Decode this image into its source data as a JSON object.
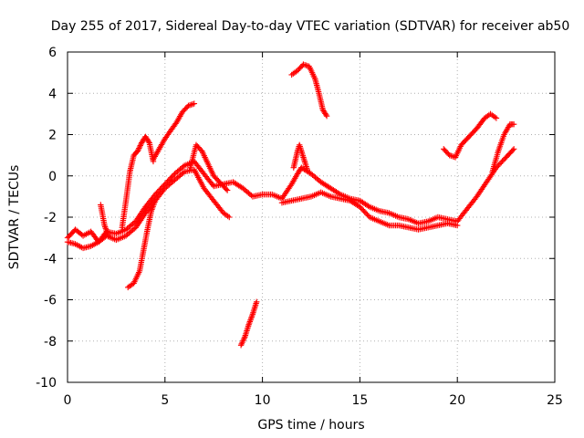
{
  "chart_data": {
    "type": "scatter",
    "title": "Day 255 of 2017, Sidereal Day-to-day VTEC variation (SDTVAR) for receiver ab50",
    "xlabel": "GPS time / hours",
    "ylabel": "SDTVAR / TECUs",
    "xlim": [
      0,
      25
    ],
    "ylim": [
      -10,
      6
    ],
    "xticks": [
      0,
      5,
      10,
      15,
      20,
      25
    ],
    "yticks": [
      -10,
      -8,
      -6,
      -4,
      -2,
      0,
      2,
      4,
      6
    ],
    "grid": true,
    "marker": "+",
    "color": "#ff0000",
    "series": [
      {
        "name": "track-main",
        "points": [
          [
            0,
            -3.0
          ],
          [
            0.4,
            -2.6
          ],
          [
            0.8,
            -2.9
          ],
          [
            1.2,
            -2.7
          ],
          [
            1.6,
            -3.2
          ],
          [
            2.0,
            -2.7
          ],
          [
            2.5,
            -2.8
          ],
          [
            3.0,
            -2.6
          ],
          [
            3.5,
            -2.2
          ],
          [
            4.0,
            -1.5
          ],
          [
            4.5,
            -0.9
          ],
          [
            5.0,
            -0.4
          ],
          [
            5.5,
            0.1
          ],
          [
            6.0,
            0.5
          ],
          [
            6.5,
            0.7
          ],
          [
            7.0,
            0.1
          ],
          [
            7.5,
            -0.5
          ],
          [
            8.0,
            -0.4
          ],
          [
            8.5,
            -0.3
          ],
          [
            9.0,
            -0.6
          ],
          [
            9.5,
            -1.0
          ],
          [
            10.0,
            -0.9
          ],
          [
            10.5,
            -0.9
          ],
          [
            11.0,
            -1.1
          ],
          [
            11.5,
            -0.4
          ],
          [
            11.8,
            0.1
          ],
          [
            12.0,
            0.4
          ],
          [
            12.5,
            0.1
          ],
          [
            13.0,
            -0.3
          ],
          [
            13.5,
            -0.6
          ],
          [
            14.0,
            -0.9
          ],
          [
            14.5,
            -1.1
          ],
          [
            15.0,
            -1.2
          ],
          [
            15.5,
            -1.5
          ],
          [
            16.0,
            -1.7
          ],
          [
            16.5,
            -1.8
          ],
          [
            17.0,
            -2.0
          ],
          [
            17.5,
            -2.1
          ],
          [
            18.0,
            -2.3
          ],
          [
            18.5,
            -2.2
          ],
          [
            19.0,
            -2.0
          ],
          [
            19.5,
            -2.1
          ],
          [
            20.0,
            -2.2
          ],
          [
            20.5,
            -1.6
          ],
          [
            21.0,
            -1.0
          ],
          [
            21.5,
            -0.3
          ],
          [
            22.0,
            0.4
          ],
          [
            22.5,
            0.9
          ],
          [
            22.9,
            1.3
          ]
        ]
      },
      {
        "name": "track-lower",
        "points": [
          [
            0,
            -3.2
          ],
          [
            0.4,
            -3.3
          ],
          [
            0.8,
            -3.5
          ],
          [
            1.2,
            -3.4
          ],
          [
            1.6,
            -3.2
          ],
          [
            2.0,
            -2.9
          ],
          [
            2.5,
            -3.1
          ],
          [
            3.0,
            -2.9
          ],
          [
            3.5,
            -2.5
          ],
          [
            4.0,
            -1.8
          ],
          [
            4.5,
            -1.2
          ],
          [
            5.0,
            -0.6
          ],
          [
            5.5,
            -0.2
          ],
          [
            6.0,
            0.2
          ],
          [
            6.5,
            0.3
          ],
          [
            7.0,
            -0.6
          ],
          [
            7.5,
            -1.2
          ],
          [
            8.0,
            -1.8
          ],
          [
            8.3,
            -2.0
          ]
        ]
      },
      {
        "name": "track-arc-a",
        "points": [
          [
            6.3,
            0.4
          ],
          [
            6.6,
            1.5
          ],
          [
            6.9,
            1.2
          ],
          [
            7.2,
            0.6
          ],
          [
            7.5,
            0.0
          ],
          [
            7.8,
            -0.3
          ],
          [
            8.2,
            -0.7
          ]
        ]
      },
      {
        "name": "track-mid",
        "points": [
          [
            11.0,
            -1.3
          ],
          [
            11.5,
            -1.2
          ],
          [
            12.0,
            -1.1
          ],
          [
            12.5,
            -1.0
          ],
          [
            13.0,
            -0.8
          ],
          [
            13.5,
            -1.0
          ],
          [
            14.0,
            -1.1
          ],
          [
            14.5,
            -1.2
          ],
          [
            15.0,
            -1.5
          ],
          [
            15.5,
            -2.0
          ],
          [
            16.0,
            -2.2
          ],
          [
            16.5,
            -2.4
          ],
          [
            17.0,
            -2.4
          ],
          [
            17.5,
            -2.5
          ],
          [
            18.0,
            -2.6
          ],
          [
            18.5,
            -2.5
          ],
          [
            19.0,
            -2.4
          ],
          [
            19.5,
            -2.3
          ],
          [
            20.0,
            -2.4
          ]
        ]
      },
      {
        "name": "rise-a",
        "points": [
          [
            3.1,
            -5.4
          ],
          [
            3.4,
            -5.2
          ],
          [
            3.7,
            -4.6
          ],
          [
            3.9,
            -3.6
          ],
          [
            4.1,
            -2.6
          ],
          [
            4.3,
            -1.7
          ],
          [
            4.5,
            -1.2
          ]
        ]
      },
      {
        "name": "rise-b",
        "points": [
          [
            2.8,
            -2.5
          ],
          [
            3.0,
            -1.2
          ],
          [
            3.2,
            0.2
          ],
          [
            3.4,
            1.0
          ],
          [
            3.6,
            1.2
          ],
          [
            3.8,
            1.6
          ],
          [
            4.0,
            1.9
          ],
          [
            4.2,
            1.6
          ],
          [
            4.4,
            0.7
          ]
        ]
      },
      {
        "name": "rise-c",
        "points": [
          [
            4.4,
            0.8
          ],
          [
            4.7,
            1.3
          ],
          [
            5.0,
            1.8
          ],
          [
            5.3,
            2.2
          ],
          [
            5.6,
            2.6
          ],
          [
            5.9,
            3.1
          ],
          [
            6.2,
            3.4
          ],
          [
            6.5,
            3.5
          ]
        ]
      },
      {
        "name": "drop-a",
        "points": [
          [
            8.9,
            -8.2
          ],
          [
            9.1,
            -7.8
          ],
          [
            9.3,
            -7.2
          ],
          [
            9.5,
            -6.7
          ],
          [
            9.7,
            -6.1
          ]
        ]
      },
      {
        "name": "arch-a",
        "points": [
          [
            11.5,
            4.9
          ],
          [
            11.8,
            5.1
          ],
          [
            12.1,
            5.4
          ],
          [
            12.4,
            5.3
          ],
          [
            12.7,
            4.7
          ],
          [
            12.9,
            4.0
          ],
          [
            13.1,
            3.2
          ],
          [
            13.3,
            2.9
          ]
        ]
      },
      {
        "name": "rise-d",
        "points": [
          [
            19.3,
            1.3
          ],
          [
            19.6,
            1.0
          ],
          [
            19.9,
            0.9
          ],
          [
            20.2,
            1.5
          ],
          [
            20.6,
            1.9
          ],
          [
            21.0,
            2.3
          ],
          [
            21.4,
            2.8
          ],
          [
            21.7,
            3.0
          ],
          [
            22.0,
            2.8
          ]
        ]
      },
      {
        "name": "rise-e",
        "points": [
          [
            21.8,
            0.2
          ],
          [
            22.1,
            1.2
          ],
          [
            22.4,
            2.0
          ],
          [
            22.7,
            2.5
          ],
          [
            22.9,
            2.5
          ]
        ]
      },
      {
        "name": "spike-a",
        "points": [
          [
            11.6,
            0.4
          ],
          [
            11.8,
            1.2
          ],
          [
            11.9,
            1.5
          ],
          [
            12.1,
            0.9
          ],
          [
            12.3,
            0.3
          ]
        ]
      },
      {
        "name": "spike-b",
        "points": [
          [
            1.7,
            -1.4
          ],
          [
            1.9,
            -2.4
          ],
          [
            2.1,
            -2.9
          ]
        ]
      }
    ]
  }
}
